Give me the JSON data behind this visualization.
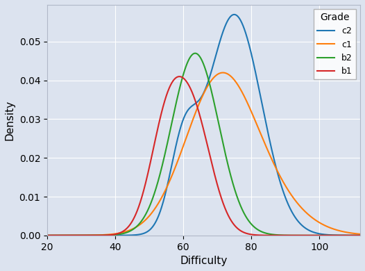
{
  "grades": [
    "c2",
    "c1",
    "b2",
    "b1"
  ],
  "colors": [
    "#1f77b4",
    "#ff7f0e",
    "#2ca02c",
    "#d62728"
  ],
  "c2_components": [
    {
      "mean": 75.0,
      "std": 8.0,
      "weight": 0.85
    },
    {
      "mean": 60.0,
      "std": 4.0,
      "weight": 0.15
    }
  ],
  "c1": {
    "mean": 70.0,
    "std": 13.0
  },
  "b2": {
    "mean": 63.0,
    "std": 7.0
  },
  "b1_components": [
    {
      "mean": 55.0,
      "std": 5.0,
      "weight": 0.45
    },
    {
      "mean": 63.0,
      "std": 5.5,
      "weight": 0.55
    }
  ],
  "c2_peak": 0.057,
  "c1_peak": 0.042,
  "b2_peak": 0.047,
  "b1_peak": 0.041,
  "xlabel": "Difficulty",
  "ylabel": "Density",
  "legend_title": "Grade",
  "xlim": [
    20,
    112
  ],
  "ylim": [
    0,
    0.0595
  ],
  "xticks": [
    20,
    40,
    60,
    80,
    100
  ],
  "yticks": [
    0.0,
    0.01,
    0.02,
    0.03,
    0.04,
    0.05
  ],
  "background_color": "#dce3ef",
  "grid_color": "white",
  "figsize": [
    5.26,
    3.9
  ],
  "dpi": 100
}
